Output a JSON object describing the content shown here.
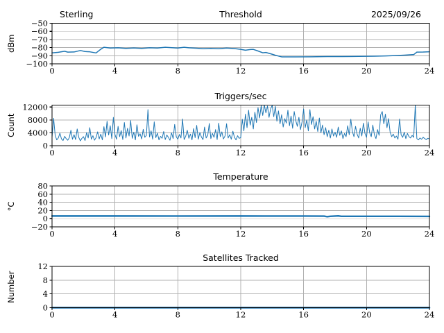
{
  "figure": {
    "background": "#ffffff",
    "line_color": "#1f77b4",
    "grid_color": "#b0b0b0",
    "axis_color": "#000000",
    "text_color": "#000000"
  },
  "chart_data": [
    {
      "type": "line",
      "id": "threshold",
      "title_left": "Sterling",
      "title": "Threshold",
      "title_right": "2025/09/26",
      "ylabel": "dBm",
      "xlim": [
        0,
        24
      ],
      "ylim": [
        -100,
        -50
      ],
      "xticks": [
        0,
        4,
        8,
        12,
        16,
        20,
        24
      ],
      "xtick_labels": [
        "0",
        "4",
        "8",
        "12",
        "16",
        "20",
        "24"
      ],
      "yticks": [
        -100,
        -90,
        -80,
        -70,
        -60,
        -50
      ],
      "ytick_labels": [
        "−100",
        "−90",
        "−80",
        "−70",
        "−60",
        "−50"
      ],
      "grid": true,
      "x": [
        0,
        0.4,
        0.8,
        1.0,
        1.4,
        1.8,
        2.1,
        2.4,
        2.8,
        3.1,
        3.3,
        3.7,
        4.2,
        4.7,
        5.2,
        5.7,
        6.2,
        6.7,
        7.2,
        7.7,
        8.0,
        8.4,
        8.7,
        9.2,
        9.6,
        10.1,
        10.6,
        11.1,
        11.6,
        12.0,
        12.3,
        12.6,
        12.8,
        13.1,
        13.4,
        13.6,
        13.9,
        14.2,
        14.6,
        15.5,
        16.5,
        17.5,
        18.5,
        19.5,
        20.5,
        21.2,
        21.8,
        22.4,
        23.0,
        23.2,
        23.6,
        24.0
      ],
      "y": [
        -86.5,
        -85.8,
        -84.5,
        -85.6,
        -85.4,
        -83.6,
        -84.8,
        -85.2,
        -86.6,
        -82.0,
        -79.6,
        -80.6,
        -80.2,
        -81.0,
        -80.4,
        -81.0,
        -80.2,
        -80.6,
        -79.6,
        -80.2,
        -80.6,
        -79.6,
        -80.2,
        -80.8,
        -81.4,
        -81.0,
        -81.4,
        -80.6,
        -81.2,
        -82.2,
        -83.2,
        -82.4,
        -82.2,
        -84.2,
        -86.4,
        -86.0,
        -87.6,
        -89.4,
        -91.4,
        -91.5,
        -91.3,
        -91.0,
        -91.0,
        -90.8,
        -90.6,
        -90.3,
        -89.8,
        -89.3,
        -88.6,
        -85.6,
        -85.5,
        -85.2
      ]
    },
    {
      "type": "line",
      "id": "triggers",
      "title": "Triggers/sec",
      "ylabel": "Count",
      "xlim": [
        0,
        24
      ],
      "ylim": [
        0,
        12600
      ],
      "xticks": [
        0,
        4,
        8,
        12,
        16,
        20,
        24
      ],
      "xtick_labels": [
        "0",
        "4",
        "8",
        "12",
        "16",
        "20",
        "24"
      ],
      "yticks": [
        0,
        4000,
        8000,
        12000
      ],
      "ytick_labels": [
        "0",
        "4000",
        "8000",
        "12000"
      ],
      "grid": true,
      "x0": 0,
      "x_step": 0.1,
      "y": [
        2600,
        8500,
        3200,
        1800,
        2400,
        3900,
        2100,
        1600,
        2900,
        2200,
        1700,
        2500,
        4800,
        2000,
        3400,
        1900,
        5200,
        2600,
        1500,
        2300,
        2800,
        1600,
        4100,
        2400,
        5600,
        2000,
        3100,
        1700,
        2500,
        4300,
        2100,
        3600,
        1800,
        5900,
        2700,
        7600,
        3300,
        6200,
        2200,
        8800,
        3500,
        2000,
        6000,
        2800,
        4700,
        1900,
        7200,
        2400,
        5400,
        3000,
        7800,
        2300,
        4200,
        1800,
        6500,
        2900,
        3700,
        2100,
        5100,
        2600,
        3200,
        11200,
        2700,
        4600,
        2000,
        7400,
        2500,
        3900,
        1800,
        2900,
        2300,
        4400,
        1900,
        3300,
        2600,
        1700,
        4000,
        2200,
        6600,
        2800,
        2000,
        3500,
        2400,
        8300,
        1900,
        2900,
        4800,
        2300,
        3600,
        1800,
        5300,
        2500,
        6300,
        2000,
        4100,
        2700,
        1900,
        5800,
        2400,
        3200,
        6900,
        2200,
        3800,
        2600,
        5000,
        1900,
        7000,
        2800,
        4300,
        2100,
        3000,
        6800,
        2400,
        3400,
        2000,
        4500,
        2600,
        1800,
        3100,
        2300,
        2500,
        8200,
        4600,
        9800,
        5600,
        11000,
        6400,
        8800,
        5200,
        10400,
        7200,
        11800,
        8600,
        12400,
        9400,
        12600,
        10200,
        12300,
        8800,
        11400,
        12500,
        9000,
        12200,
        7600,
        10800,
        6800,
        9600,
        5800,
        8400,
        7000,
        11000,
        6200,
        9200,
        5400,
        10600,
        7800,
        6000,
        8800,
        5000,
        7400,
        11400,
        5600,
        8000,
        4600,
        11200,
        6600,
        9000,
        5200,
        7600,
        4400,
        8600,
        4000,
        6400,
        3400,
        5600,
        2800,
        4800,
        2400,
        5200,
        3000,
        4200,
        2600,
        5800,
        3200,
        4600,
        2200,
        3800,
        2800,
        6200,
        3400,
        8200,
        4400,
        2800,
        6000,
        3600,
        2400,
        5400,
        3000,
        7000,
        3800,
        2600,
        7400,
        4000,
        2800,
        6400,
        3400,
        2200,
        5000,
        3200,
        9600,
        10600,
        6800,
        9800,
        5600,
        8400,
        4200,
        2800,
        3600,
        2400,
        3000,
        2000,
        8300,
        3400,
        2600,
        4200,
        2200,
        3800,
        2800,
        2400,
        3200,
        2600,
        12600,
        2200,
        1800,
        2400,
        2000,
        2600,
        2200,
        1900,
        2300,
        2100
      ]
    },
    {
      "type": "line",
      "id": "temperature",
      "title": "Temperature",
      "ylabel": "°C",
      "xlim": [
        0,
        24
      ],
      "ylim": [
        -20,
        80
      ],
      "xticks": [
        0,
        4,
        8,
        12,
        16,
        20,
        24
      ],
      "xtick_labels": [
        "0",
        "4",
        "8",
        "12",
        "16",
        "20",
        "24"
      ],
      "yticks": [
        -20,
        0,
        20,
        40,
        60,
        80
      ],
      "ytick_labels": [
        "−20",
        "0",
        "20",
        "40",
        "60",
        "80"
      ],
      "grid": true,
      "x": [
        0,
        4,
        8,
        12,
        16,
        17.3,
        17.5,
        17.7,
        18.2,
        18.4,
        20,
        22,
        24
      ],
      "y": [
        6.5,
        6.5,
        6.4,
        6.5,
        6.4,
        6.2,
        4.8,
        5.8,
        6.8,
        5.8,
        5.8,
        5.7,
        5.6
      ]
    },
    {
      "type": "line",
      "id": "satellites",
      "title": "Satellites Tracked",
      "ylabel": "Number",
      "xlim": [
        0,
        24
      ],
      "ylim": [
        0,
        12
      ],
      "xticks": [
        0,
        4,
        8,
        12,
        16,
        20,
        24
      ],
      "xtick_labels": [
        "0",
        "4",
        "8",
        "12",
        "16",
        "20",
        "24"
      ],
      "yticks": [
        0,
        4,
        8,
        12
      ],
      "ytick_labels": [
        "0",
        "4",
        "8",
        "12"
      ],
      "grid": true,
      "x": [
        0,
        24
      ],
      "y": [
        0,
        0
      ]
    }
  ]
}
